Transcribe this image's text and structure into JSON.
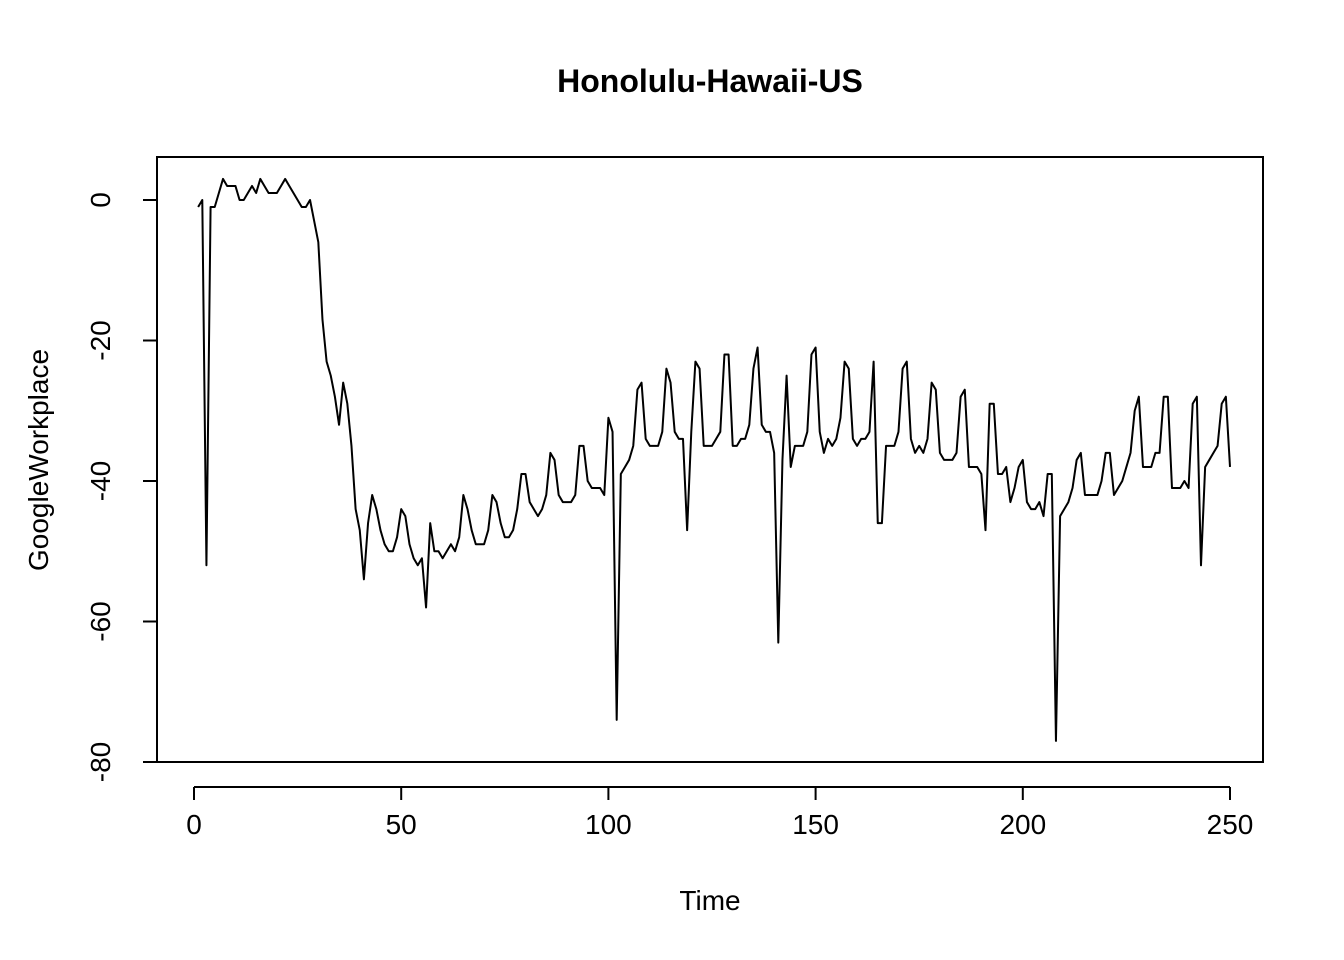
{
  "chart_data": {
    "type": "line",
    "title": "Honolulu-Hawaii-US",
    "xlabel": "Time",
    "ylabel": "GoogleWorkplace",
    "xlim": [
      1,
      248
    ],
    "ylim": [
      -77,
      3
    ],
    "x_ticks": [
      0,
      50,
      100,
      150,
      200,
      250
    ],
    "y_ticks": [
      -80,
      -60,
      -40,
      -20,
      0
    ],
    "x_tick_labels": [
      "0",
      "50",
      "100",
      "150",
      "200",
      "250"
    ],
    "y_tick_labels": [
      "-80",
      "-60",
      "-40",
      "-20",
      "0"
    ],
    "grid": false,
    "legend": "none",
    "line_color": "#000000",
    "series": [
      {
        "x_start": 1,
        "values": [
          -1,
          0,
          -52,
          -1,
          -1,
          1,
          3,
          2,
          2,
          2,
          0,
          0,
          1,
          2,
          1,
          3,
          2,
          1,
          1,
          1,
          2,
          3,
          2,
          1,
          0,
          -1,
          -1,
          0,
          -3,
          -6,
          -17,
          -23,
          -25,
          -28,
          -32,
          -26,
          -29,
          -35,
          -44,
          -47,
          -54,
          -46,
          -42,
          -44,
          -47,
          -49,
          -50,
          -50,
          -48,
          -44,
          -45,
          -49,
          -51,
          -52,
          -51,
          -58,
          -46,
          -50,
          -50,
          -51,
          -50,
          -49,
          -50,
          -48,
          -42,
          -44,
          -47,
          -49,
          -49,
          -49,
          -47,
          -42,
          -43,
          -46,
          -48,
          -48,
          -47,
          -44,
          -39,
          -39,
          -43,
          -44,
          -45,
          -44,
          -42,
          -36,
          -37,
          -42,
          -43,
          -43,
          -43,
          -42,
          -35,
          -35,
          -40,
          -41,
          -41,
          -41,
          -42,
          -31,
          -33,
          -74,
          -39,
          -38,
          -37,
          -35,
          -27,
          -26,
          -34,
          -35,
          -35,
          -35,
          -33,
          -24,
          -26,
          -33,
          -34,
          -34,
          -47,
          -33,
          -23,
          -24,
          -35,
          -35,
          -35,
          -34,
          -33,
          -22,
          -22,
          -35,
          -35,
          -34,
          -34,
          -32,
          -24,
          -21,
          -32,
          -33,
          -33,
          -36,
          -63,
          -37,
          -25,
          -38,
          -35,
          -35,
          -35,
          -33,
          -22,
          -21,
          -33,
          -36,
          -34,
          -35,
          -34,
          -31,
          -23,
          -24,
          -34,
          -35,
          -34,
          -34,
          -33,
          -23,
          -46,
          -46,
          -35,
          -35,
          -35,
          -33,
          -24,
          -23,
          -34,
          -36,
          -35,
          -36,
          -34,
          -26,
          -27,
          -36,
          -37,
          -37,
          -37,
          -36,
          -28,
          -27,
          -38,
          -38,
          -38,
          -39,
          -47,
          -29,
          -29,
          -39,
          -39,
          -38,
          -43,
          -41,
          -38,
          -37,
          -43,
          -44,
          -44,
          -43,
          -45,
          -39,
          -39,
          -77,
          -45,
          -44,
          -43,
          -41,
          -37,
          -36,
          -42,
          -42,
          -42,
          -42,
          -40,
          -36,
          -36,
          -42,
          -41,
          -40,
          -38,
          -36,
          -30,
          -28,
          -38,
          -38,
          -38,
          -36,
          -36,
          -28,
          -28,
          -41,
          -41,
          -41,
          -40,
          -41,
          -29,
          -28,
          -52,
          -38,
          -37,
          -36,
          -35,
          -29,
          -28,
          -38
        ]
      }
    ]
  }
}
